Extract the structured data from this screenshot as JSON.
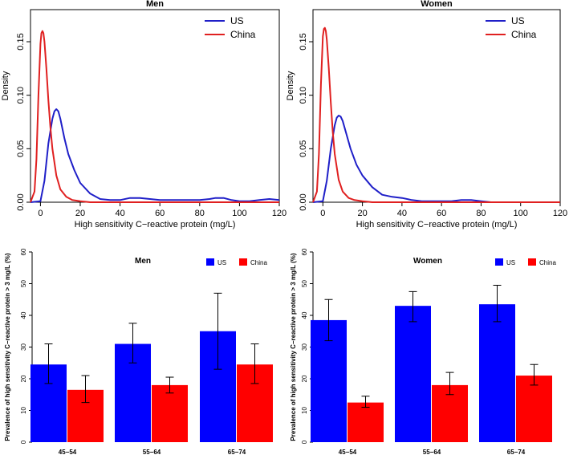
{
  "chart_data": [
    {
      "id": "men_density",
      "type": "line",
      "title": "Men",
      "xlabel": "High sensitivity C−reactive protein (mg/L)",
      "ylabel": "Density",
      "xlim": [
        -5,
        120
      ],
      "ylim": [
        0,
        0.18
      ],
      "xticks": [
        "0",
        "20",
        "40",
        "60",
        "80",
        "100",
        "120"
      ],
      "yticks": [
        "0.00",
        "0.05",
        "0.10",
        "0.15"
      ],
      "legend": {
        "position": "top-right",
        "entries": [
          "US",
          "China"
        ]
      },
      "series": [
        {
          "name": "US",
          "color": "#1f1fc8",
          "x": [
            -5,
            0,
            2,
            4,
            6,
            7,
            8,
            9,
            10,
            12,
            14,
            17,
            20,
            25,
            30,
            35,
            40,
            45,
            50,
            55,
            60,
            65,
            70,
            75,
            80,
            85,
            88,
            92,
            96,
            100,
            105,
            110,
            115,
            120
          ],
          "y": [
            0,
            0.001,
            0.02,
            0.055,
            0.078,
            0.085,
            0.087,
            0.085,
            0.078,
            0.06,
            0.045,
            0.03,
            0.018,
            0.008,
            0.003,
            0.002,
            0.002,
            0.004,
            0.004,
            0.003,
            0.002,
            0.002,
            0.002,
            0.002,
            0.002,
            0.003,
            0.004,
            0.004,
            0.002,
            0.001,
            0.001,
            0.002,
            0.003,
            0.002
          ]
        },
        {
          "name": "China",
          "color": "#e02020",
          "x": [
            -5,
            -3,
            -2,
            -1,
            0,
            0.5,
            1,
            1.5,
            2,
            3,
            4,
            5,
            6,
            8,
            10,
            13,
            16,
            20,
            25,
            30,
            40,
            60,
            80,
            100,
            120
          ],
          "y": [
            0,
            0.01,
            0.04,
            0.1,
            0.148,
            0.158,
            0.16,
            0.158,
            0.15,
            0.125,
            0.095,
            0.07,
            0.05,
            0.025,
            0.012,
            0.005,
            0.002,
            0.001,
            0,
            0,
            0,
            0,
            0,
            0,
            0
          ]
        }
      ]
    },
    {
      "id": "women_density",
      "type": "line",
      "title": "Women",
      "xlabel": "High sensitivity C−reactive protein (mg/L)",
      "ylabel": "Density",
      "xlim": [
        -5,
        120
      ],
      "ylim": [
        0,
        0.18
      ],
      "xticks": [
        "0",
        "20",
        "40",
        "60",
        "80",
        "100",
        "120"
      ],
      "yticks": [
        "0.00",
        "0.05",
        "0.10",
        "0.15"
      ],
      "legend": {
        "position": "top-right",
        "entries": [
          "US",
          "China"
        ]
      },
      "series": [
        {
          "name": "US",
          "color": "#1f1fc8",
          "x": [
            -5,
            0,
            2,
            4,
            6,
            7,
            8,
            9,
            10,
            12,
            14,
            17,
            20,
            25,
            30,
            35,
            40,
            45,
            50,
            55,
            60,
            65,
            70,
            75,
            80,
            85,
            90,
            100,
            110,
            120
          ],
          "y": [
            0,
            0.001,
            0.02,
            0.05,
            0.072,
            0.079,
            0.081,
            0.08,
            0.076,
            0.063,
            0.05,
            0.035,
            0.025,
            0.014,
            0.007,
            0.005,
            0.004,
            0.002,
            0.001,
            0.001,
            0.001,
            0.001,
            0.002,
            0.002,
            0.001,
            0,
            0,
            0,
            0,
            0
          ]
        },
        {
          "name": "China",
          "color": "#e02020",
          "x": [
            -5,
            -3,
            -2,
            -1,
            0,
            0.5,
            1,
            1.5,
            2,
            3,
            4,
            5,
            6,
            8,
            10,
            13,
            16,
            20,
            25,
            30,
            40,
            60,
            80,
            100,
            120
          ],
          "y": [
            0,
            0.01,
            0.045,
            0.11,
            0.155,
            0.162,
            0.163,
            0.16,
            0.152,
            0.125,
            0.093,
            0.066,
            0.045,
            0.021,
            0.01,
            0.004,
            0.002,
            0.001,
            0,
            0,
            0,
            0,
            0,
            0,
            0
          ]
        }
      ]
    },
    {
      "id": "men_prevalence",
      "type": "bar",
      "title": "Men",
      "xlabel": "",
      "ylabel": "Prevalence of high sensitivity C−reactive protein > 3 mg/L (%)",
      "ylim": [
        0,
        60
      ],
      "yticks": [
        "0",
        "10",
        "20",
        "30",
        "40",
        "50",
        "60"
      ],
      "categories": [
        "45−54",
        "55−64",
        "65−74"
      ],
      "legend": {
        "position": "top-right",
        "entries": [
          "US",
          "China"
        ]
      },
      "series": [
        {
          "name": "US",
          "color": "#0000ff",
          "values": [
            24.5,
            31.0,
            35.0
          ],
          "ci_low": [
            18.5,
            25.0,
            23.0
          ],
          "ci_high": [
            31.0,
            37.5,
            47.0
          ]
        },
        {
          "name": "China",
          "color": "#ff0000",
          "values": [
            16.5,
            18.0,
            24.5
          ],
          "ci_low": [
            12.5,
            15.5,
            18.5
          ],
          "ci_high": [
            21.0,
            20.5,
            31.0
          ]
        }
      ]
    },
    {
      "id": "women_prevalence",
      "type": "bar",
      "title": "Women",
      "xlabel": "",
      "ylabel": "Prevalence of high sensitivity C−reactive protein > 3 mg/L (%)",
      "ylim": [
        0,
        60
      ],
      "yticks": [
        "0",
        "10",
        "20",
        "30",
        "40",
        "50",
        "60"
      ],
      "categories": [
        "45−54",
        "55−64",
        "65−74"
      ],
      "legend": {
        "position": "top-right",
        "entries": [
          "US",
          "China"
        ]
      },
      "series": [
        {
          "name": "US",
          "color": "#0000ff",
          "values": [
            38.5,
            43.0,
            43.5
          ],
          "ci_low": [
            32.0,
            38.0,
            38.0
          ],
          "ci_high": [
            45.0,
            47.5,
            49.5
          ]
        },
        {
          "name": "China",
          "color": "#ff0000",
          "values": [
            12.5,
            18.0,
            21.0
          ],
          "ci_low": [
            11.0,
            15.0,
            18.0
          ],
          "ci_high": [
            14.5,
            22.0,
            24.5
          ]
        }
      ]
    }
  ]
}
